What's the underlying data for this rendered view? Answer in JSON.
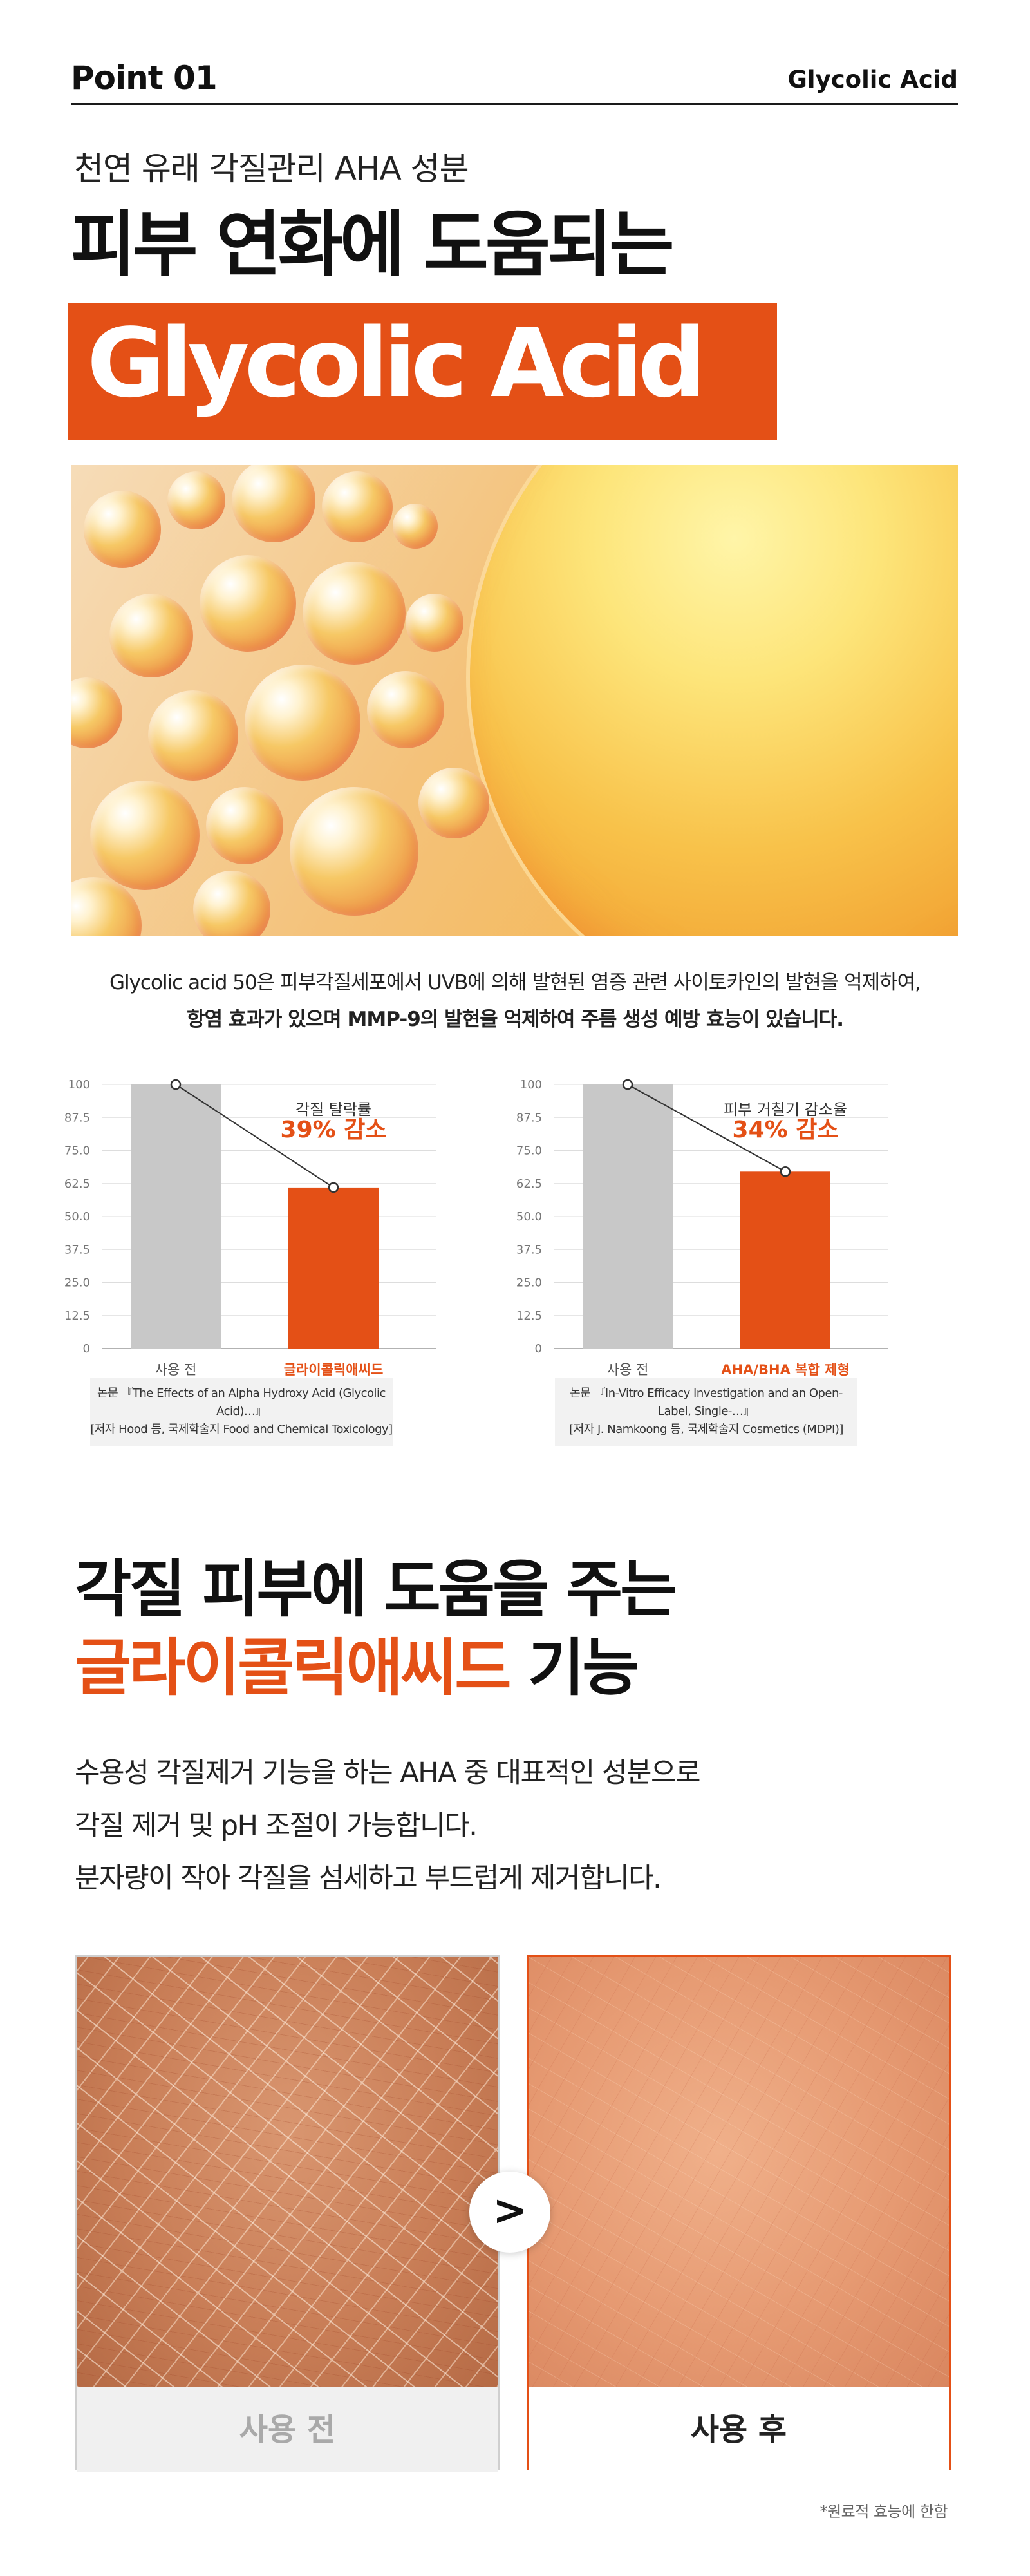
{
  "header": {
    "point": "Point 01",
    "ingredient": "Glycolic Acid"
  },
  "hero": {
    "kicker": "천연 유래 각질관리 AHA 성분",
    "headline": "피부 연화에 도움되는",
    "band_text": "Glycolic Acid"
  },
  "description": {
    "line1": "Glycolic acid 50은 피부각질세포에서 UVB에 의해 발현된 염증 관련 사이토카인의 발현을 억제하여,",
    "line2": "항염 효과가 있으며 MMP-9의 발현을 억제하여 주름 생성 예방 효능이 있습니다."
  },
  "colors": {
    "accent": "#e45016",
    "bar_gray": "#c8c8c8"
  },
  "chart_data": [
    {
      "type": "bar",
      "categories": [
        "사용 전",
        "글라이콜릭애씨드"
      ],
      "values": [
        100,
        61
      ],
      "ylim": [
        0,
        100
      ],
      "yticks": [
        "0",
        "12.5",
        "25.0",
        "37.5",
        "50.0",
        "62.5",
        "75.0",
        "87.5",
        "100"
      ],
      "annotation_label": "각질 탈락률",
      "annotation_value": "39% 감소",
      "grid": true,
      "source_line1": "논문 『The Effects of an Alpha Hydroxy Acid (Glycolic Acid)…』",
      "source_line2": "[저자 Hood 등, 국제학술지 Food and Chemical Toxicology]"
    },
    {
      "type": "bar",
      "categories": [
        "사용 전",
        "AHA/BHA 복합 제형"
      ],
      "values": [
        100,
        67
      ],
      "ylim": [
        0,
        100
      ],
      "yticks": [
        "0",
        "12.5",
        "25.0",
        "37.5",
        "50.0",
        "62.5",
        "75.0",
        "87.5",
        "100"
      ],
      "annotation_label": "피부 거칠기 감소율",
      "annotation_value": "34% 감소",
      "grid": true,
      "source_line1": "논문 『In-Vitro Efficacy Investigation and an Open-Label, Single-…』",
      "source_line2": "[저자 J. Namkoong 등, 국제학술지 Cosmetics (MDPI)]"
    }
  ],
  "section2": {
    "title_line1": "각질 피부에 도움을 주는",
    "title_line2_accent": "글라이콜릭애씨드",
    "title_line2_rest": " 기능",
    "body1": "수용성 각질제거 기능을 하는 AHA 중 대표적인 성분으로",
    "body2": "각질 제거 및 pH 조절이 가능합니다.",
    "body3": "분자량이 작아 각질을 섬세하고 부드럽게 제거합니다."
  },
  "compare": {
    "before_label": "사용 전",
    "after_label": "사용 후",
    "arrow_glyph": ">",
    "footnote": "*원료적 효능에 한함"
  }
}
